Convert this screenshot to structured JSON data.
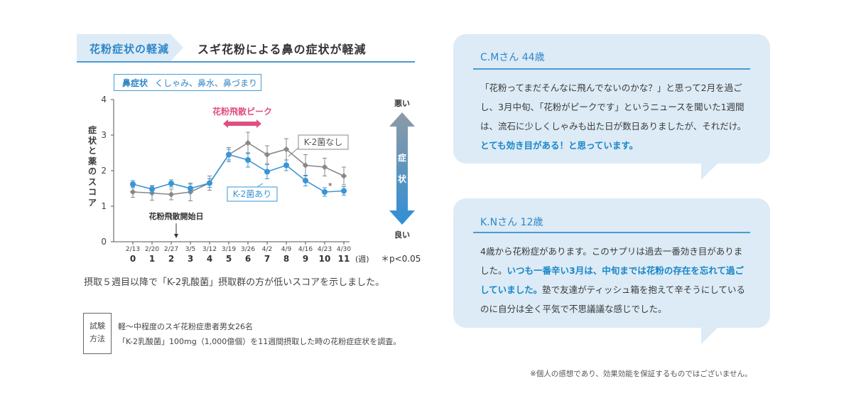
{
  "header": {
    "tag": "花粉症状の軽減",
    "headline": "スギ花粉による鼻の症状が軽減"
  },
  "chart_data": {
    "type": "line",
    "title": "鼻症状　くしゃみ、鼻水、鼻づまり",
    "title_main": "鼻症状",
    "title_sub": "くしゃみ、鼻水、鼻づまり",
    "ylabel": "症状と薬のスコア",
    "ylim": [
      0,
      4
    ],
    "yticks": [
      "0",
      "1",
      "2",
      "3",
      "4"
    ],
    "dates": [
      "2/13",
      "2/20",
      "2/27",
      "3/5",
      "3/12",
      "3/19",
      "3/26",
      "4/2",
      "4/9",
      "4/16",
      "4/23",
      "4/30"
    ],
    "weeks": [
      "0",
      "1",
      "2",
      "3",
      "4",
      "5",
      "6",
      "7",
      "8",
      "9",
      "10",
      "11"
    ],
    "week_unit": "(週)",
    "significance": "＊p<0.05",
    "series": [
      {
        "name": "K-2菌なし",
        "color": "#888888",
        "values": [
          1.4,
          1.37,
          1.33,
          1.4,
          1.65,
          2.45,
          2.78,
          2.45,
          2.6,
          2.15,
          2.1,
          1.85
        ],
        "errors": [
          0.15,
          0.2,
          0.15,
          0.25,
          0.2,
          0.2,
          0.3,
          0.25,
          0.3,
          0.3,
          0.25,
          0.25
        ]
      },
      {
        "name": "K-2菌あり",
        "color": "#3a95d4",
        "values": [
          1.62,
          1.48,
          1.64,
          1.5,
          1.65,
          2.45,
          2.3,
          1.97,
          2.15,
          1.72,
          1.4,
          1.43
        ],
        "errors": [
          0.1,
          0.1,
          0.1,
          0.12,
          0.12,
          0.15,
          0.2,
          0.2,
          0.15,
          0.15,
          0.12,
          0.12
        ]
      }
    ],
    "significant_index": 10,
    "annotations": {
      "peak": "花粉飛散ピーク",
      "start": "花粉飛散開始日",
      "bad": "悪い",
      "good": "良い",
      "arrow": [
        "症",
        "状"
      ]
    },
    "grid": false
  },
  "note": "摂取５週目以降で「K-2乳酸菌」摂取群の方が低いスコアを示しました。",
  "method": {
    "label_l1": "試験",
    "label_l2": "方法",
    "line1": "軽～中程度のスギ花粉症患者男女26名",
    "line2": "「K-2乳酸菌」100mg（1,000億個）を11週間摂取した時の花粉症症状を調査。"
  },
  "testimonials": [
    {
      "name": "C.Mさん 44歳",
      "text": "「花粉ってまだそんなに飛んでないのかな？」と思って2月を過ごし、3月中旬、「花粉がピークです」というニュースを聞いた1週間は、流石に少しくしゃみも出た日が数日ありましたが、それだけ。",
      "highlight": "とても効き目がある！と思っています。",
      "after": ""
    },
    {
      "name": "K.Nさん 12歳",
      "text": "4歳から花粉症があります。このサプリは過去一番効き目がありました。",
      "highlight": "いつも一番辛い3月は、中旬までは花粉の存在を忘れて過ごしていました。",
      "after": "塾で友達がティッシュ箱を抱えて辛そうにしているのに自分は全く平気で不思議議な感じでした。"
    }
  ],
  "disclaimer": "※個人の感想であり、効果効能を保証するものではございません。",
  "colors": {
    "accent": "#2f86c8",
    "pink": "#e0507f",
    "bubble": "#dcebf6"
  }
}
